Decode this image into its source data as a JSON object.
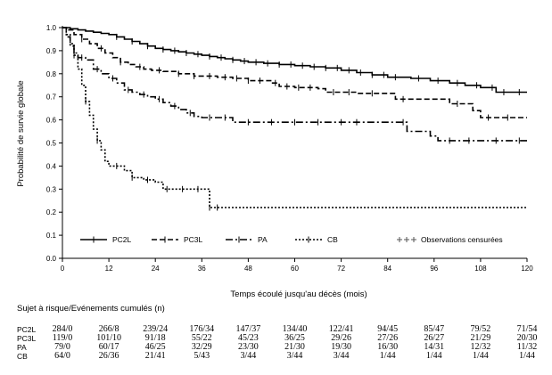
{
  "chart_data": {
    "type": "line",
    "subtype": "kaplan-meier",
    "ylabel": "Probabilité de survie globale",
    "xlabel": "Temps écoulé jusqu'au décès (mois)",
    "xlim": [
      0,
      120
    ],
    "ylim": [
      0.0,
      1.0
    ],
    "x_ticks": [
      0,
      12,
      24,
      36,
      48,
      60,
      72,
      84,
      96,
      108,
      120
    ],
    "y_ticks": [
      0.0,
      0.1,
      0.2,
      0.3,
      0.4,
      0.5,
      0.6,
      0.7,
      0.8,
      0.9,
      1.0
    ],
    "legend_position": "bottom-inside",
    "censor_legend": "Observations censurées",
    "series": [
      {
        "name": "PC2L",
        "style": "solid",
        "steps": [
          [
            0,
            1.0
          ],
          [
            2,
            0.995
          ],
          [
            4,
            0.99
          ],
          [
            6,
            0.985
          ],
          [
            8,
            0.98
          ],
          [
            10,
            0.975
          ],
          [
            12,
            0.97
          ],
          [
            14,
            0.96
          ],
          [
            16,
            0.95
          ],
          [
            18,
            0.94
          ],
          [
            20,
            0.93
          ],
          [
            22,
            0.92
          ],
          [
            24,
            0.91
          ],
          [
            26,
            0.905
          ],
          [
            28,
            0.9
          ],
          [
            30,
            0.895
          ],
          [
            32,
            0.89
          ],
          [
            34,
            0.885
          ],
          [
            36,
            0.88
          ],
          [
            38,
            0.875
          ],
          [
            40,
            0.87
          ],
          [
            42,
            0.865
          ],
          [
            44,
            0.86
          ],
          [
            46,
            0.855
          ],
          [
            48,
            0.85
          ],
          [
            52,
            0.845
          ],
          [
            56,
            0.84
          ],
          [
            60,
            0.835
          ],
          [
            64,
            0.83
          ],
          [
            68,
            0.825
          ],
          [
            72,
            0.815
          ],
          [
            76,
            0.805
          ],
          [
            80,
            0.795
          ],
          [
            84,
            0.785
          ],
          [
            90,
            0.78
          ],
          [
            95,
            0.77
          ],
          [
            100,
            0.76
          ],
          [
            104,
            0.75
          ],
          [
            108,
            0.74
          ],
          [
            112,
            0.72
          ],
          [
            120,
            0.72
          ]
        ],
        "censored": [
          14,
          18,
          22,
          26,
          29,
          32,
          35,
          38,
          41,
          44,
          47,
          50,
          53,
          56,
          59,
          62,
          65,
          68,
          71,
          74,
          77,
          80,
          83,
          86,
          92,
          97,
          102,
          107,
          111,
          114,
          118
        ]
      },
      {
        "name": "PC3L",
        "style": "dash",
        "steps": [
          [
            0,
            1.0
          ],
          [
            1,
            0.99
          ],
          [
            3,
            0.97
          ],
          [
            5,
            0.95
          ],
          [
            7,
            0.93
          ],
          [
            9,
            0.91
          ],
          [
            11,
            0.89
          ],
          [
            13,
            0.87
          ],
          [
            15,
            0.85
          ],
          [
            17,
            0.84
          ],
          [
            19,
            0.83
          ],
          [
            21,
            0.82
          ],
          [
            23,
            0.815
          ],
          [
            26,
            0.81
          ],
          [
            30,
            0.8
          ],
          [
            34,
            0.79
          ],
          [
            40,
            0.785
          ],
          [
            44,
            0.78
          ],
          [
            48,
            0.77
          ],
          [
            54,
            0.76
          ],
          [
            56,
            0.745
          ],
          [
            60,
            0.74
          ],
          [
            66,
            0.735
          ],
          [
            68,
            0.72
          ],
          [
            76,
            0.715
          ],
          [
            86,
            0.69
          ],
          [
            96,
            0.69
          ],
          [
            100,
            0.67
          ],
          [
            106,
            0.64
          ],
          [
            108,
            0.61
          ],
          [
            120,
            0.61
          ]
        ],
        "censored": [
          5,
          10,
          15,
          20,
          25,
          30,
          34,
          38,
          42,
          45,
          48,
          51,
          55,
          58,
          61,
          64,
          70,
          74,
          80,
          88,
          102,
          110,
          115
        ]
      },
      {
        "name": "PA",
        "style": "dashdot",
        "steps": [
          [
            0,
            1.0
          ],
          [
            1,
            0.96
          ],
          [
            2,
            0.92
          ],
          [
            3,
            0.89
          ],
          [
            4,
            0.87
          ],
          [
            6,
            0.86
          ],
          [
            8,
            0.82
          ],
          [
            10,
            0.8
          ],
          [
            12,
            0.78
          ],
          [
            14,
            0.76
          ],
          [
            16,
            0.73
          ],
          [
            18,
            0.72
          ],
          [
            20,
            0.71
          ],
          [
            22,
            0.7
          ],
          [
            24,
            0.69
          ],
          [
            26,
            0.675
          ],
          [
            28,
            0.66
          ],
          [
            30,
            0.645
          ],
          [
            32,
            0.63
          ],
          [
            34,
            0.615
          ],
          [
            36,
            0.61
          ],
          [
            44,
            0.59
          ],
          [
            78,
            0.59
          ],
          [
            89,
            0.55
          ],
          [
            95,
            0.53
          ],
          [
            97,
            0.51
          ],
          [
            120,
            0.51
          ]
        ],
        "censored": [
          5,
          9,
          13,
          17,
          21,
          25,
          29,
          33,
          38,
          42,
          48,
          54,
          60,
          66,
          72,
          76,
          88,
          100,
          105,
          112,
          118
        ]
      },
      {
        "name": "CB",
        "style": "dot",
        "steps": [
          [
            0,
            1.0
          ],
          [
            1,
            0.97
          ],
          [
            2,
            0.93
          ],
          [
            3,
            0.88
          ],
          [
            4,
            0.82
          ],
          [
            5,
            0.75
          ],
          [
            6,
            0.68
          ],
          [
            7,
            0.62
          ],
          [
            8,
            0.56
          ],
          [
            9,
            0.51
          ],
          [
            10,
            0.47
          ],
          [
            11,
            0.42
          ],
          [
            12,
            0.4
          ],
          [
            16,
            0.38
          ],
          [
            18,
            0.35
          ],
          [
            21,
            0.34
          ],
          [
            24,
            0.33
          ],
          [
            26,
            0.3
          ],
          [
            36,
            0.3
          ],
          [
            38,
            0.22
          ],
          [
            120,
            0.22
          ]
        ],
        "censored": [
          3,
          6,
          9,
          14,
          18,
          22,
          27,
          31,
          35,
          38,
          40
        ]
      }
    ]
  },
  "risk_table": {
    "title": "Sujet à risque/Evénements cumulés (n)",
    "rows": [
      {
        "label": "PC2L",
        "values": [
          "284/0",
          "266/8",
          "239/24",
          "176/34",
          "147/37",
          "134/40",
          "122/41",
          "94/45",
          "85/47",
          "79/52",
          "71/54"
        ]
      },
      {
        "label": "PC3L",
        "values": [
          "119/0",
          "101/10",
          "91/18",
          "55/22",
          "45/23",
          "36/25",
          "29/26",
          "27/26",
          "26/27",
          "21/29",
          "20/30"
        ]
      },
      {
        "label": "PA",
        "values": [
          "79/0",
          "60/17",
          "46/25",
          "32/29",
          "23/30",
          "21/30",
          "19/30",
          "16/30",
          "14/31",
          "12/32",
          "11/32"
        ]
      },
      {
        "label": "CB",
        "values": [
          "64/0",
          "26/36",
          "21/41",
          "5/43",
          "3/44",
          "3/44",
          "3/44",
          "1/44",
          "1/44",
          "1/44",
          "1/44"
        ]
      }
    ]
  }
}
